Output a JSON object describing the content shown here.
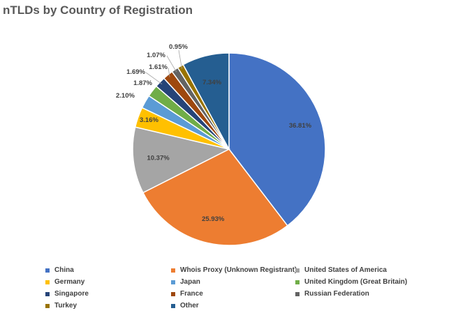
{
  "chart_data": {
    "type": "pie",
    "title": "nTLDs by Country of Registration",
    "slices": [
      {
        "name": "China",
        "value": 36.81,
        "label": "36.81%",
        "color": "#4472C4"
      },
      {
        "name": "Whois Proxy (Unknown Registrant)",
        "value": 25.93,
        "label": "25.93%",
        "color": "#ED7D31"
      },
      {
        "name": "United States of America",
        "value": 10.37,
        "label": "10.37%",
        "color": "#A5A5A5"
      },
      {
        "name": "Germany",
        "value": 3.16,
        "label": "3.16%",
        "color": "#FFC000"
      },
      {
        "name": "Japan",
        "value": 2.1,
        "label": "2.10%",
        "color": "#5B9BD5"
      },
      {
        "name": "United Kingdom (Great Britain)",
        "value": 1.87,
        "label": "1.87%",
        "color": "#70AD47"
      },
      {
        "name": "Singapore",
        "value": 1.69,
        "label": "1.69%",
        "color": "#264478"
      },
      {
        "name": "France",
        "value": 1.61,
        "label": "1.61%",
        "color": "#9E480E"
      },
      {
        "name": "Russian Federation",
        "value": 1.07,
        "label": "1.07%",
        "color": "#636363"
      },
      {
        "name": "Turkey",
        "value": 0.95,
        "label": "0.95%",
        "color": "#997300"
      },
      {
        "name": "Other",
        "value": 7.34,
        "label": "7.34%",
        "color": "#255E91"
      }
    ],
    "legend_position": "bottom"
  }
}
